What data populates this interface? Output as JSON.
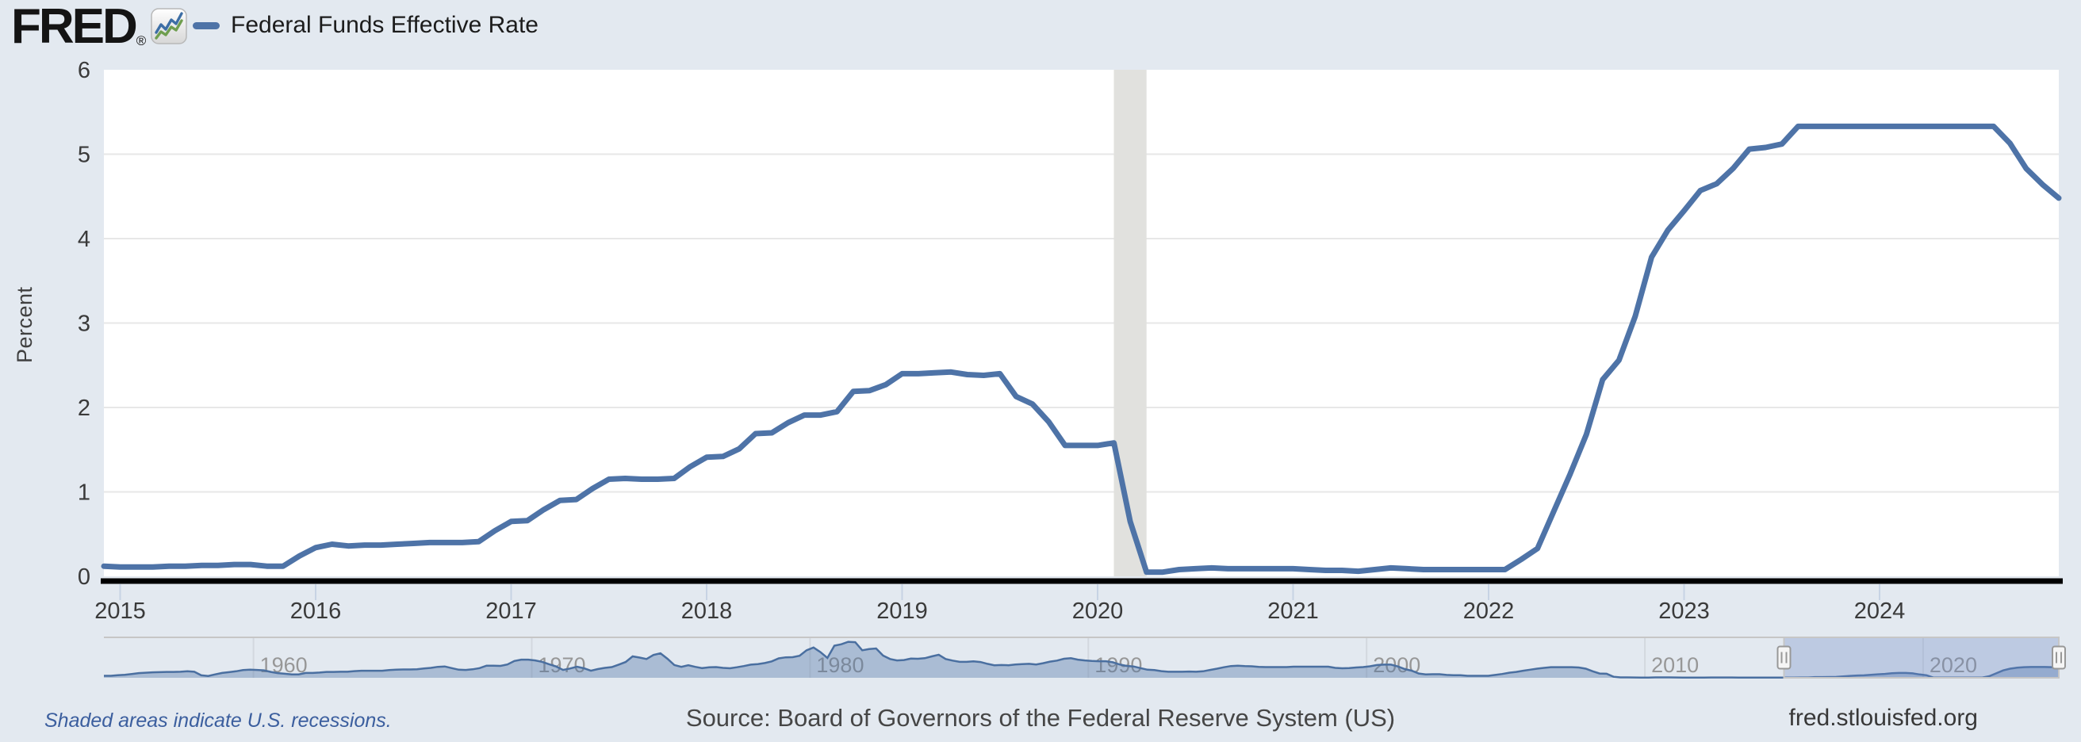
{
  "header": {
    "logo_text": "FRED",
    "logo_reg": "®",
    "legend_label": "Federal Funds Effective Rate"
  },
  "footer": {
    "recession_note": "Shaded areas indicate U.S. recessions.",
    "source": "Source: Board of Governors of the Federal Reserve System (US)",
    "site": "fred.stlouisfed.org"
  },
  "chart_data": {
    "type": "line",
    "series_name": "Federal Funds Effective Rate",
    "ylabel": "Percent",
    "ylim": [
      0,
      6
    ],
    "y_ticks": [
      0,
      1,
      2,
      3,
      4,
      5,
      6
    ],
    "x_ticks": [
      2015,
      2016,
      2017,
      2018,
      2019,
      2020,
      2021,
      2022,
      2023,
      2024
    ],
    "grid": "horizontal-only",
    "x_start_month": "2014-12",
    "x_end_month": "2024-12",
    "monthly_values": [
      0.12,
      0.11,
      0.11,
      0.11,
      0.12,
      0.12,
      0.13,
      0.13,
      0.14,
      0.14,
      0.12,
      0.12,
      0.24,
      0.34,
      0.38,
      0.36,
      0.37,
      0.37,
      0.38,
      0.39,
      0.4,
      0.4,
      0.4,
      0.41,
      0.54,
      0.65,
      0.66,
      0.79,
      0.9,
      0.91,
      1.04,
      1.15,
      1.16,
      1.15,
      1.15,
      1.16,
      1.3,
      1.41,
      1.42,
      1.51,
      1.69,
      1.7,
      1.82,
      1.91,
      1.91,
      1.95,
      2.19,
      2.2,
      2.27,
      2.4,
      2.4,
      2.41,
      2.42,
      2.39,
      2.38,
      2.4,
      2.13,
      2.04,
      1.83,
      1.55,
      1.55,
      1.55,
      1.58,
      0.65,
      0.05,
      0.05,
      0.08,
      0.09,
      0.1,
      0.09,
      0.09,
      0.09,
      0.09,
      0.09,
      0.08,
      0.07,
      0.07,
      0.06,
      0.08,
      0.1,
      0.09,
      0.08,
      0.08,
      0.08,
      0.08,
      0.08,
      0.08,
      0.2,
      0.33,
      0.77,
      1.21,
      1.68,
      2.33,
      2.56,
      3.08,
      3.78,
      4.1,
      4.33,
      4.57,
      4.65,
      4.83,
      5.06,
      5.08,
      5.12,
      5.33,
      5.33,
      5.33,
      5.33,
      5.33,
      5.33,
      5.33,
      5.33,
      5.33,
      5.33,
      5.33,
      5.33,
      5.33,
      5.13,
      4.83,
      4.64,
      4.48
    ],
    "recession_band": {
      "start": 2020.083,
      "end": 2020.25
    },
    "navigator": {
      "type": "area",
      "x_start": 1954.625,
      "x_step": 0.25,
      "decade_labels": [
        "1960",
        "1970",
        "1980",
        "1990",
        "2000",
        "2010",
        "2020"
      ],
      "selection": {
        "start": 2015.0,
        "end": 2024.92
      },
      "values": [
        1.0,
        1.0,
        1.3,
        1.5,
        1.9,
        2.3,
        2.5,
        2.7,
        2.8,
        2.9,
        2.9,
        3.0,
        3.2,
        3.0,
        1.2,
        0.9,
        1.7,
        2.4,
        2.8,
        3.2,
        3.8,
        4.0,
        3.9,
        3.7,
        2.9,
        2.3,
        2.0,
        1.7,
        1.7,
        2.4,
        2.4,
        2.6,
        2.9,
        2.9,
        3.0,
        3.0,
        3.3,
        3.5,
        3.5,
        3.5,
        3.5,
        3.8,
        4.0,
        4.1,
        4.1,
        4.2,
        4.6,
        4.9,
        5.4,
        5.6,
        4.8,
        4.0,
        3.9,
        4.2,
        4.8,
        6.0,
        6.0,
        5.9,
        6.6,
        8.3,
        9.0,
        9.0,
        8.6,
        7.9,
        6.7,
        5.6,
        3.9,
        4.6,
        5.5,
        4.7,
        3.5,
        4.3,
        4.9,
        5.3,
        6.5,
        7.8,
        10.6,
        10.0,
        9.3,
        11.3,
        12.1,
        9.4,
        6.3,
        5.4,
        6.2,
        5.4,
        4.8,
        5.2,
        5.3,
        4.9,
        4.7,
        5.2,
        5.8,
        6.5,
        6.8,
        7.3,
        8.1,
        9.6,
        10.1,
        10.2,
        10.9,
        13.6,
        15.0,
        12.7,
        9.8,
        15.9,
        16.6,
        17.8,
        17.6,
        13.6,
        14.2,
        14.5,
        11.0,
        9.3,
        8.6,
        8.8,
        9.5,
        9.4,
        9.7,
        10.6,
        11.4,
        9.3,
        8.5,
        7.9,
        7.9,
        8.1,
        7.8,
        6.9,
        6.2,
        6.3,
        6.2,
        6.6,
        6.8,
        6.9,
        6.6,
        7.2,
        8.0,
        8.5,
        9.4,
        9.7,
        9.0,
        8.6,
        8.3,
        8.2,
        8.2,
        7.7,
        6.6,
        5.9,
        5.6,
        4.8,
        4.0,
        3.8,
        3.3,
        3.0,
        3.0,
        3.0,
        3.1,
        3.0,
        3.2,
        3.9,
        4.5,
        5.2,
        5.8,
        6.0,
        5.8,
        5.7,
        5.4,
        5.3,
        5.3,
        5.3,
        5.3,
        5.5,
        5.5,
        5.5,
        5.5,
        5.5,
        5.5,
        4.9,
        4.7,
        4.8,
        5.1,
        5.3,
        5.7,
        6.3,
        6.5,
        6.5,
        5.6,
        4.3,
        3.5,
        2.1,
        1.7,
        1.75,
        1.75,
        1.4,
        1.25,
        1.25,
        1.0,
        1.0,
        1.0,
        1.0,
        1.4,
        1.9,
        2.5,
        2.9,
        3.5,
        4.0,
        4.5,
        4.9,
        5.25,
        5.25,
        5.25,
        5.25,
        5.1,
        4.5,
        3.2,
        2.1,
        2.0,
        0.5,
        0.18,
        0.18,
        0.16,
        0.12,
        0.13,
        0.19,
        0.19,
        0.19,
        0.16,
        0.09,
        0.08,
        0.07,
        0.1,
        0.15,
        0.14,
        0.16,
        0.14,
        0.12,
        0.09,
        0.09,
        0.07,
        0.09,
        0.09,
        0.1,
        0.11,
        0.12,
        0.14,
        0.16,
        0.36,
        0.37,
        0.4,
        0.45,
        0.7,
        0.95,
        1.15,
        1.2,
        1.45,
        1.74,
        1.92,
        2.22,
        2.4,
        2.4,
        2.19,
        1.64,
        1.26,
        0.06,
        0.09,
        0.09,
        0.08,
        0.07,
        0.09,
        0.08,
        0.12,
        0.77,
        2.19,
        3.65,
        4.52,
        4.99,
        5.26,
        5.33,
        5.33,
        5.33,
        5.26,
        4.65
      ]
    },
    "colors": {
      "line": "#4e73a7",
      "page_bg": "#e3e9f0",
      "plot_bg": "#ffffff",
      "grid": "#e7e7e7",
      "recession": "#e1e1de",
      "axis_line": "#000000",
      "tick_mark": "#c7d3e4",
      "axis_label": "#3a3a3a",
      "nav_fill": "rgba(78,115,166,0.38)",
      "nav_line": "#4a6fa0",
      "nav_mask": "rgba(102,133,194,0.30)",
      "nav_border": "#c6c6c6",
      "handle_fill": "#f5f5f5",
      "handle_stroke": "#989898",
      "decade_label": "#979797"
    }
  }
}
